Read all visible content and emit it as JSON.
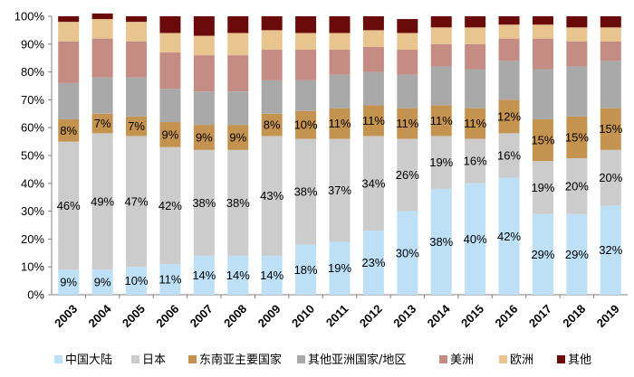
{
  "chart_data": {
    "type": "bar",
    "stacked": true,
    "title": "",
    "xlabel": "",
    "ylabel": "",
    "ylim": [
      0,
      100
    ],
    "yticks": [
      "0%",
      "10%",
      "20%",
      "30%",
      "40%",
      "50%",
      "60%",
      "70%",
      "80%",
      "90%",
      "100%"
    ],
    "grid": false,
    "legend_position": "bottom",
    "categories": [
      "2003",
      "2004",
      "2005",
      "2006",
      "2007",
      "2008",
      "2009",
      "2010",
      "2011",
      "2012",
      "2013",
      "2014",
      "2015",
      "2016",
      "2017",
      "2018",
      "2019"
    ],
    "series": [
      {
        "name": "中国大陆",
        "color": "#bde0f7",
        "values": [
          9,
          9,
          10,
          11,
          14,
          14,
          14,
          18,
          19,
          23,
          30,
          38,
          40,
          42,
          29,
          29,
          32
        ],
        "labels": [
          "9%",
          "9%",
          "10%",
          "11%",
          "14%",
          "14%",
          "14%",
          "18%",
          "19%",
          "23%",
          "30%",
          "38%",
          "40%",
          "42%",
          "29%",
          "29%",
          "32%"
        ]
      },
      {
        "name": "日本",
        "color": "#cccccc",
        "values": [
          46,
          49,
          47,
          42,
          38,
          38,
          43,
          38,
          37,
          34,
          26,
          19,
          16,
          16,
          19,
          20,
          20
        ],
        "labels": [
          "46%",
          "49%",
          "47%",
          "42%",
          "38%",
          "38%",
          "43%",
          "38%",
          "37%",
          "34%",
          "26%",
          "19%",
          "16%",
          "16%",
          "19%",
          "20%",
          "20%"
        ]
      },
      {
        "name": "东南亚主要国家",
        "color": "#c49350",
        "values": [
          8,
          7,
          7,
          9,
          9,
          9,
          8,
          10,
          11,
          11,
          11,
          11,
          11,
          12,
          15,
          15,
          15
        ],
        "labels": [
          "8%",
          "7%",
          "7%",
          "9%",
          "9%",
          "9%",
          "8%",
          "10%",
          "11%",
          "11%",
          "11%",
          "11%",
          "11%",
          "12%",
          "15%",
          "15%",
          "15%"
        ]
      },
      {
        "name": "其他亚洲国家/地区",
        "color": "#a9a9a9",
        "values": [
          13,
          13,
          14,
          12,
          12,
          12,
          12,
          11,
          12,
          12,
          12,
          14,
          14,
          14,
          18,
          18,
          17
        ]
      },
      {
        "name": "美洲",
        "color": "#c48c83",
        "values": [
          15,
          14,
          13,
          13,
          13,
          13,
          11,
          11,
          9,
          9,
          9,
          8,
          9,
          8,
          11,
          9,
          7
        ]
      },
      {
        "name": "欧洲",
        "color": "#e8c58f",
        "values": [
          7,
          7,
          7,
          7,
          7,
          8,
          7,
          6,
          6,
          6,
          6,
          6,
          6,
          5,
          5,
          5,
          5
        ]
      },
      {
        "name": "其他",
        "color": "#6b0a0a",
        "values": [
          2,
          2,
          2,
          6,
          7,
          6,
          5,
          6,
          6,
          5,
          5,
          4,
          4,
          3,
          3,
          4,
          4
        ]
      }
    ]
  }
}
